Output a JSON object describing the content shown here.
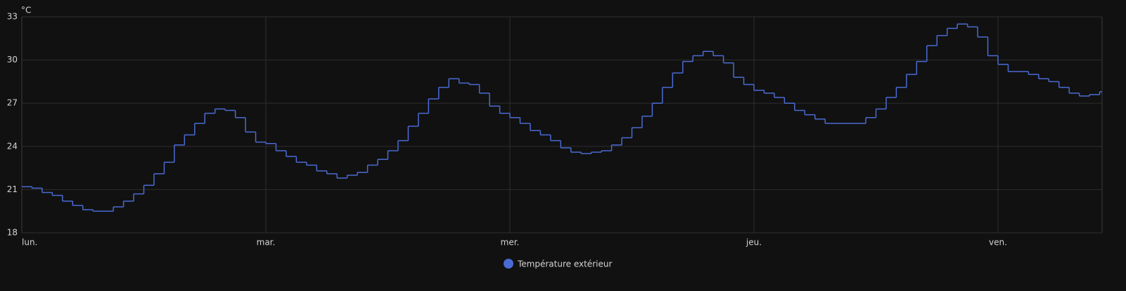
{
  "chart_data": {
    "type": "step",
    "y_unit": "°C",
    "categories": [
      "lun.",
      null,
      null,
      null,
      null,
      null,
      null,
      null,
      null,
      null,
      null,
      null,
      null,
      null,
      null,
      null,
      null,
      null,
      null,
      null,
      null,
      null,
      null,
      null,
      "mar.",
      null,
      null,
      null,
      null,
      null,
      null,
      null,
      null,
      null,
      null,
      null,
      null,
      null,
      null,
      null,
      null,
      null,
      null,
      null,
      null,
      null,
      null,
      null,
      "mer.",
      null,
      null,
      null,
      null,
      null,
      null,
      null,
      null,
      null,
      null,
      null,
      null,
      null,
      null,
      null,
      null,
      null,
      null,
      null,
      null,
      null,
      null,
      null,
      "jeu.",
      null,
      null,
      null,
      null,
      null,
      null,
      null,
      null,
      null,
      null,
      null,
      null,
      null,
      null,
      null,
      null,
      null,
      null,
      null,
      null,
      null,
      null,
      null,
      "ven.",
      null,
      null,
      null,
      null,
      null,
      null,
      null,
      null,
      null,
      null
    ],
    "series": [
      {
        "name": "Température extérieur",
        "color": "#4a6bd4",
        "values": [
          21.2,
          21.1,
          20.8,
          20.6,
          20.2,
          19.9,
          19.6,
          19.5,
          19.5,
          19.8,
          20.2,
          20.7,
          21.3,
          22.1,
          22.9,
          24.1,
          24.8,
          25.6,
          26.3,
          26.6,
          26.5,
          26.0,
          25.0,
          24.3,
          24.2,
          23.7,
          23.3,
          22.9,
          22.7,
          22.3,
          22.1,
          21.8,
          22.0,
          22.2,
          22.7,
          23.1,
          23.7,
          24.4,
          25.4,
          26.3,
          27.3,
          28.1,
          28.7,
          28.4,
          28.3,
          27.7,
          26.8,
          26.3,
          26.0,
          25.6,
          25.1,
          24.8,
          24.4,
          23.9,
          23.6,
          23.5,
          23.6,
          23.7,
          24.1,
          24.6,
          25.3,
          26.1,
          27.0,
          28.1,
          29.1,
          29.9,
          30.3,
          30.6,
          30.3,
          29.8,
          28.8,
          28.3,
          27.9,
          27.7,
          27.4,
          27.0,
          26.5,
          26.2,
          25.9,
          25.6,
          25.6,
          25.6,
          25.6,
          26.0,
          26.6,
          27.4,
          28.1,
          29.0,
          29.9,
          31.0,
          31.7,
          32.2,
          32.5,
          32.3,
          31.6,
          30.3,
          29.7,
          29.2,
          29.2,
          29.0,
          28.7,
          28.5,
          28.1,
          27.7,
          27.5,
          27.6,
          27.8
        ]
      }
    ],
    "ylim": [
      18,
      33
    ],
    "yticks": [
      18,
      21,
      24,
      27,
      30,
      33
    ],
    "grid": true
  }
}
